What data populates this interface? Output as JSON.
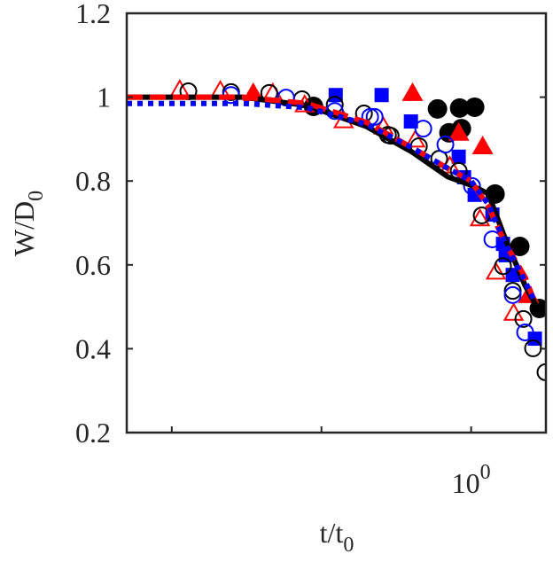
{
  "chart_data": {
    "type": "scatter",
    "title": "",
    "xlabel": "t/t",
    "xlabel_sub": "0",
    "ylabel": "W/D",
    "ylabel_sub": "0",
    "xscale": "log",
    "xlim": [
      0.005,
      3.16
    ],
    "ylim": [
      0.2,
      1.2
    ],
    "yticks": [
      0.2,
      0.4,
      0.6,
      0.8,
      1.0,
      1.2
    ],
    "ytick_labels": [
      "0.2",
      "0.4",
      "0.6",
      "0.8",
      "1",
      "1.2"
    ],
    "xticks": [
      0.01,
      0.1,
      1
    ],
    "xtick_labels": [
      "",
      "",
      "10"
    ],
    "xtick_label_exp": "0",
    "grid": false,
    "legend": "none",
    "colors": {
      "black": "#000000",
      "red": "#ff0000",
      "blue": "#0000ff",
      "axis": "#262626"
    },
    "series": [
      {
        "name": "black-filled-circles",
        "marker": "circle",
        "filled": true,
        "color": "#000000",
        "x": [
          0.0885,
          0.596,
          0.838,
          1.056,
          0.711,
          0.861,
          1.445,
          2.115,
          2.856
        ],
        "y": [
          0.978,
          0.972,
          0.974,
          0.976,
          0.915,
          0.925,
          0.769,
          0.644,
          0.496
        ]
      },
      {
        "name": "red-filled-triangles",
        "marker": "triangle",
        "filled": true,
        "color": "#ff0000",
        "x": [
          0.035,
          0.406,
          0.826,
          1.194,
          2.425
        ],
        "y": [
          1.01,
          1.01,
          0.915,
          0.883,
          0.528
        ]
      },
      {
        "name": "blue-filled-squares",
        "marker": "square",
        "filled": true,
        "color": "#0000ff",
        "x": [
          0.1245,
          0.2524,
          0.396,
          0.826,
          0.897,
          1.056,
          1.387,
          1.633,
          1.702,
          1.897,
          2.667
        ],
        "y": [
          1.005,
          1.005,
          0.942,
          0.858,
          0.809,
          0.767,
          0.72,
          0.65,
          0.623,
          0.576,
          0.424
        ]
      },
      {
        "name": "red-open-triangles",
        "marker": "triangle",
        "filled": false,
        "color": "#ff0000",
        "x": [
          0.0113,
          0.0211,
          0.0473,
          0.0772,
          0.1406,
          0.2594,
          0.4236,
          0.721,
          1.146,
          1.465,
          1.923
        ],
        "y": [
          1.018,
          1.016,
          1.01,
          0.982,
          0.944,
          0.929,
          0.898,
          0.836,
          0.71,
          0.583,
          0.485
        ]
      },
      {
        "name": "black-open-circles",
        "marker": "circle",
        "filled": false,
        "color": "#000000",
        "x": [
          0.0129,
          0.0249,
          0.0448,
          0.0741,
          0.1227,
          0.1923,
          0.278,
          0.2897,
          0.4477,
          0.612,
          0.826,
          1.178,
          1.633,
          1.897,
          2.234,
          2.594,
          3.14
        ],
        "y": [
          1.014,
          1.012,
          1.01,
          0.995,
          0.982,
          0.961,
          0.91,
          0.908,
          0.883,
          0.853,
          0.824,
          0.718,
          0.597,
          0.538,
          0.471,
          0.401,
          0.344
        ]
      },
      {
        "name": "blue-open-circles",
        "marker": "circle",
        "filled": false,
        "color": "#0000ff",
        "x": [
          0.0249,
          0.058,
          0.1227,
          0.2115,
          0.2265,
          0.479,
          0.673,
          1.014,
          1.387,
          1.897,
          2.296
        ],
        "y": [
          1.005,
          0.999,
          0.967,
          0.953,
          0.953,
          0.925,
          0.887,
          0.788,
          0.661,
          0.528,
          0.439
        ]
      },
      {
        "name": "black-solid-line",
        "line": "solid",
        "color": "#000000",
        "x": [
          0.005,
          0.03,
          0.08,
          0.2,
          0.4,
          0.7,
          1.0,
          1.3,
          1.7,
          2.3,
          2.85
        ],
        "y": [
          1.0,
          1.0,
          0.98,
          0.93,
          0.87,
          0.81,
          0.79,
          0.77,
          0.66,
          0.55,
          0.49
        ]
      },
      {
        "name": "red-dashed-line",
        "line": "dashed",
        "color": "#ff0000",
        "x": [
          0.005,
          0.03,
          0.08,
          0.2,
          0.4,
          0.7,
          1.0,
          1.3,
          1.7,
          2.3,
          2.6
        ],
        "y": [
          1.0,
          1.0,
          0.985,
          0.94,
          0.88,
          0.83,
          0.8,
          0.74,
          0.65,
          0.57,
          0.52
        ]
      },
      {
        "name": "blue-dotted-line",
        "line": "dotted",
        "color": "#0000ff",
        "x": [
          0.005,
          0.03,
          0.08,
          0.2,
          0.4,
          0.7,
          1.0,
          1.3,
          1.7,
          2.3,
          2.6
        ],
        "y": [
          0.985,
          0.985,
          0.975,
          0.935,
          0.88,
          0.83,
          0.8,
          0.745,
          0.65,
          0.56,
          0.52
        ]
      }
    ]
  }
}
